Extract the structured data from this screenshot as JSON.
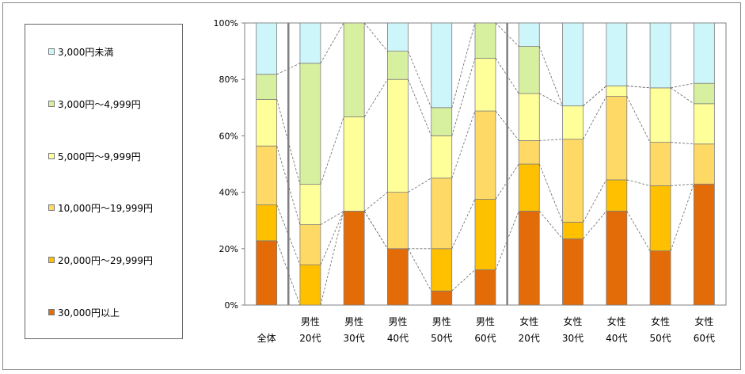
{
  "chart_data": {
    "type": "bar",
    "stacked": true,
    "percent": true,
    "categories": [
      "全体",
      "男性 20代",
      "男性 30代",
      "男性 40代",
      "男性 50代",
      "男性 60代",
      "女性 20代",
      "女性 30代",
      "女性 40代",
      "女性 50代",
      "女性 60代"
    ],
    "category_lines": [
      [
        "全体"
      ],
      [
        "男性",
        "20代"
      ],
      [
        "男性",
        "30代"
      ],
      [
        "男性",
        "40代"
      ],
      [
        "男性",
        "50代"
      ],
      [
        "男性",
        "60代"
      ],
      [
        "女性",
        "20代"
      ],
      [
        "女性",
        "30代"
      ],
      [
        "女性",
        "40代"
      ],
      [
        "女性",
        "50代"
      ],
      [
        "女性",
        "60代"
      ]
    ],
    "series": [
      {
        "name": "30,000円以上",
        "color": "#E36C09",
        "values": [
          22.8,
          0,
          33.3,
          20.0,
          5.0,
          12.5,
          33.3,
          23.5,
          33.3,
          19.2,
          42.9
        ]
      },
      {
        "name": "20,000円～29,999円",
        "color": "#FFC000",
        "values": [
          12.7,
          14.3,
          0,
          0,
          15.0,
          25.0,
          16.7,
          5.9,
          11.1,
          23.1,
          0
        ]
      },
      {
        "name": "10,000円～19,999円",
        "color": "#FFD966",
        "values": [
          20.9,
          14.2,
          0,
          20.0,
          25.0,
          31.3,
          8.3,
          29.4,
          29.6,
          15.4,
          14.2
        ]
      },
      {
        "name": "5,000円～9,999円",
        "color": "#FFFF99",
        "values": [
          16.5,
          14.3,
          33.4,
          40.0,
          15.0,
          18.7,
          16.7,
          11.8,
          3.7,
          19.3,
          14.3
        ]
      },
      {
        "name": "3,000円～4,999円",
        "color": "#D7F0A0",
        "values": [
          8.9,
          42.9,
          33.3,
          10.0,
          10.0,
          12.5,
          16.7,
          0,
          0,
          0,
          7.2
        ]
      },
      {
        "name": "3,000円未満",
        "color": "#CCF6FA",
        "values": [
          18.2,
          14.3,
          0,
          10.0,
          30.0,
          0,
          8.3,
          29.4,
          22.3,
          23.0,
          21.4
        ]
      }
    ],
    "y_ticks": [
      "0%",
      "20%",
      "40%",
      "60%",
      "80%",
      "100%"
    ],
    "ylim": [
      0,
      100
    ],
    "group_separators_after": [
      0,
      5
    ],
    "series_connector_lines": true,
    "legend_position": "left",
    "title": "",
    "xlabel": "",
    "ylabel": ""
  }
}
